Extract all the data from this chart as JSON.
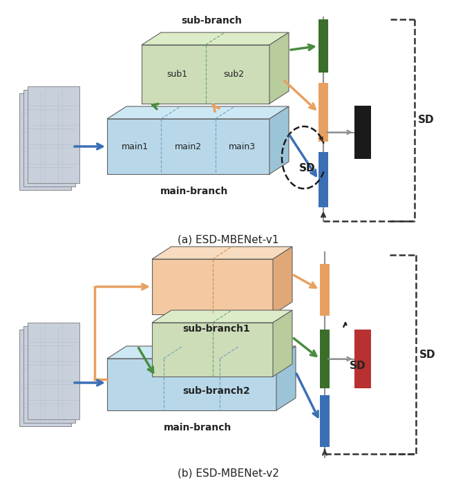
{
  "fig_width": 6.4,
  "fig_height": 6.74,
  "bg_color": "#ffffff",
  "title_a": "(a) ESD-MBENet-v1",
  "title_b": "(b) ESD-MBENet-v2",
  "sub_branch_label": "sub-branch",
  "main_branch_label": "main-branch",
  "sub_branch1_label": "sub-branch1",
  "sub_branch2_label": "sub-branch2",
  "sd_label": "SD",
  "sub1_label": "sub1",
  "sub2_label": "sub2",
  "main1_label": "main1",
  "main2_label": "main2",
  "main3_label": "main3",
  "color_green_arrow": "#4a8c3f",
  "color_orange_arrow": "#e8a060",
  "color_blue_arrow": "#3a6fb5",
  "color_light_green_face": "#cdddb8",
  "color_light_green_top": "#ddecc8",
  "color_light_green_side": "#b8cc9c",
  "color_light_blue_face": "#b8d8ea",
  "color_light_blue_top": "#cce8f4",
  "color_light_blue_side": "#9cc4d8",
  "color_peach_face": "#f4c8a0",
  "color_peach_top": "#f8dcc0",
  "color_peach_side": "#e0a878",
  "color_black": "#1a1a1a",
  "color_dark_green_bar": "#3a6e2a",
  "color_red_bar": "#b83030",
  "color_gray": "#909090",
  "color_dashed": "#333333"
}
